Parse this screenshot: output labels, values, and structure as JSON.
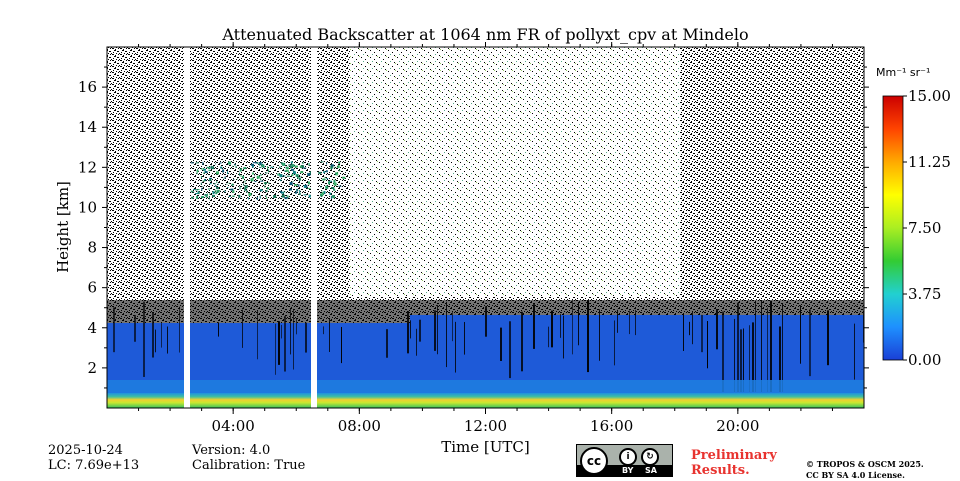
{
  "chart_data": {
    "type": "heatmap",
    "title": "Attenuated Backscatter at 1064 nm FR of pollyxt_cpv at Mindelo",
    "xlabel": "Time [UTC]",
    "ylabel": "Height [km]",
    "xlim": [
      "00:00",
      "24:00"
    ],
    "ylim": [
      0,
      18
    ],
    "x_ticks": [
      "04:00",
      "08:00",
      "12:00",
      "16:00",
      "20:00"
    ],
    "y_ticks": [
      2,
      4,
      6,
      8,
      10,
      12,
      14,
      16
    ],
    "colorbar": {
      "label": "Mm⁻¹ sr⁻¹",
      "range": [
        0.0,
        15.0
      ],
      "ticks": [
        "15.00",
        "11.25",
        "7.50",
        "3.75",
        "0.00"
      ],
      "colormap": [
        "#1a3fd6",
        "#1e90ff",
        "#22d0d0",
        "#33cc33",
        "#aaee22",
        "#ffff00",
        "#ffaa00",
        "#ff4400",
        "#cc0000"
      ]
    },
    "features": [
      {
        "name": "surface layer",
        "height_km": [
          0,
          0.7
        ],
        "value_range": [
          4,
          9
        ]
      },
      {
        "name": "boundary layer",
        "height_km": [
          0.7,
          4.3
        ],
        "value_range": [
          0.5,
          2
        ]
      },
      {
        "name": "elevated layer",
        "time_utc": [
          "02:30",
          "07:30"
        ],
        "height_km": [
          10.5,
          12.3
        ],
        "value_range": [
          1,
          4
        ]
      }
    ],
    "data_gaps_utc": [
      "02:30",
      "06:40"
    ]
  },
  "meta": {
    "date": "2025-10-24",
    "lc": "LC: 7.69e+13",
    "version": "Version: 4.0",
    "calibration": "Calibration: True"
  },
  "license": {
    "badge_cc": "cc",
    "badge_by": "BY",
    "badge_sa": "SA",
    "preliminary_line1": "Preliminary",
    "preliminary_line2": "Results.",
    "copyright": "© TROPOS & OSCM 2025.",
    "terms": "CC BY SA 4.0 License."
  }
}
